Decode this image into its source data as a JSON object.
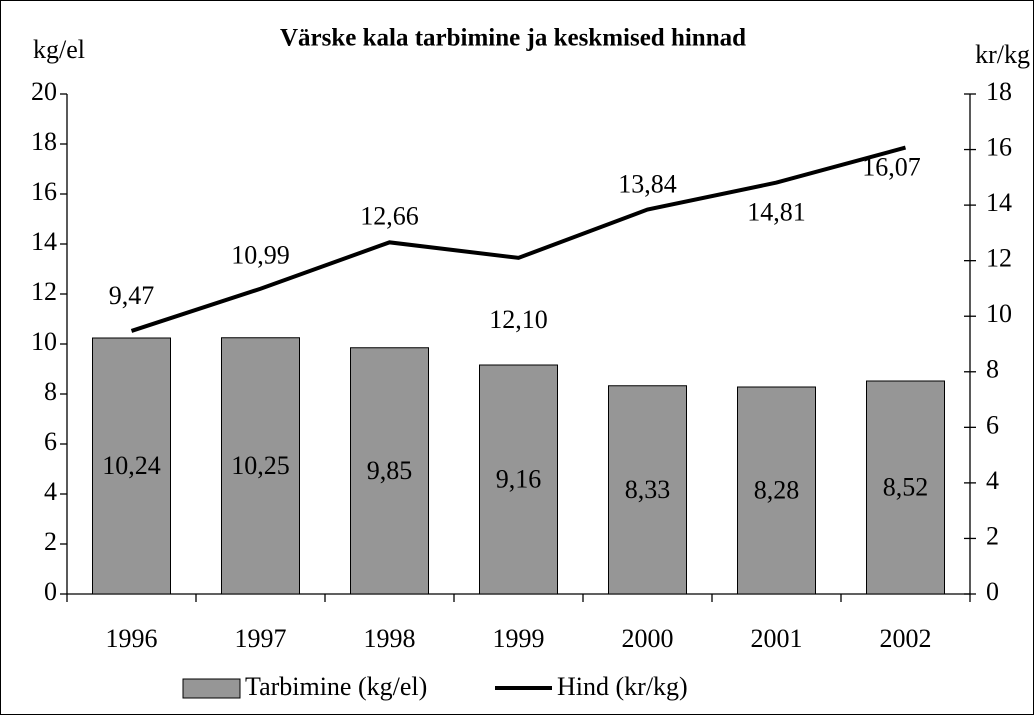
{
  "chart_data": {
    "type": "bar",
    "title": "Värske kala tarbimine ja keskmised hinnad",
    "ylabel": "kg/el",
    "y2label": "kr/kg",
    "categories": [
      "1996",
      "1997",
      "1998",
      "1999",
      "2000",
      "2001",
      "2002"
    ],
    "series": [
      {
        "name": "Tarbimine (kg/el)",
        "type": "bar",
        "color": "#969696",
        "values": [
          10.24,
          10.25,
          9.85,
          9.16,
          8.33,
          8.28,
          8.52
        ],
        "value_labels": [
          "10,24",
          "10,25",
          "9,85",
          "9,16",
          "8,33",
          "8,28",
          "8,52"
        ]
      },
      {
        "name": "Hind (kr/kg)",
        "type": "line",
        "axis": "y2",
        "color": "#000000",
        "values": [
          9.47,
          10.99,
          12.66,
          12.1,
          13.84,
          14.81,
          16.07
        ],
        "value_labels": [
          "9,47",
          "10,99",
          "12,66",
          "12,10",
          "13,84",
          "14,81",
          "16,07"
        ]
      }
    ],
    "ylim": [
      0,
      20
    ],
    "yticks": [
      0,
      2,
      4,
      6,
      8,
      10,
      12,
      14,
      16,
      18,
      20
    ],
    "y2lim": [
      0,
      18
    ],
    "y2ticks": [
      0,
      2,
      4,
      6,
      8,
      10,
      12,
      14,
      16,
      18
    ],
    "legend": "bottom"
  }
}
